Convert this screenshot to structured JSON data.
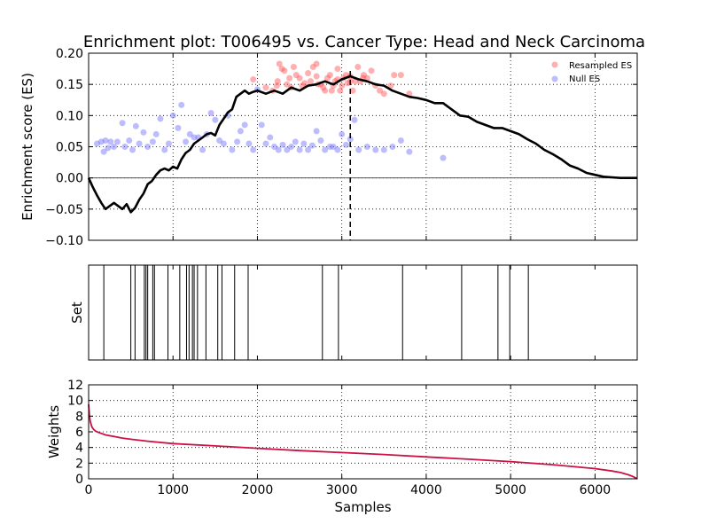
{
  "chart_data": [
    {
      "type": "line",
      "title": "Enrichment plot: T006495 vs. Cancer Type: Head and Neck Carcinoma",
      "xlabel": "",
      "ylabel": "Enrichment score (ES)",
      "xlim": [
        0,
        6500
      ],
      "ylim": [
        -0.1,
        0.2
      ],
      "yticks": [
        -0.1,
        -0.05,
        0.0,
        0.05,
        0.1,
        0.15,
        0.2
      ],
      "ytick_labels": [
        "−0.10",
        "−0.05",
        "0.00",
        "0.05",
        "0.10",
        "0.15",
        "0.20"
      ],
      "xticks": [
        1000,
        2000,
        3000,
        4000,
        5000,
        6000
      ],
      "grid": true,
      "legend_placement": "top-right",
      "legend": [
        "Resampled ES",
        "Null ES"
      ],
      "peak_x": 3100,
      "colors": {
        "es_line": "#000000",
        "resampled": "#ff4d4d",
        "null": "#6b6bff"
      },
      "series": [
        {
          "name": "",
          "x": [
            0,
            50,
            100,
            150,
            200,
            250,
            300,
            350,
            400,
            450,
            500,
            550,
            600,
            650,
            700,
            750,
            800,
            850,
            900,
            950,
            1000,
            1050,
            1100,
            1150,
            1200,
            1250,
            1300,
            1350,
            1400,
            1450,
            1500,
            1550,
            1600,
            1650,
            1700,
            1750,
            1800,
            1850,
            1900,
            1950,
            2000,
            2100,
            2200,
            2300,
            2400,
            2500,
            2600,
            2700,
            2800,
            2900,
            3000,
            3100,
            3200,
            3300,
            3400,
            3500,
            3600,
            3700,
            3800,
            3900,
            4000,
            4100,
            4200,
            4300,
            4400,
            4500,
            4600,
            4700,
            4800,
            4900,
            5000,
            5100,
            5200,
            5300,
            5400,
            5500,
            5600,
            5700,
            5800,
            5900,
            6000,
            6100,
            6200,
            6300,
            6400,
            6500
          ],
          "y": [
            0.0,
            -0.015,
            -0.028,
            -0.04,
            -0.05,
            -0.045,
            -0.04,
            -0.045,
            -0.05,
            -0.042,
            -0.055,
            -0.048,
            -0.035,
            -0.025,
            -0.01,
            -0.005,
            0.005,
            0.012,
            0.015,
            0.012,
            0.018,
            0.015,
            0.03,
            0.04,
            0.045,
            0.055,
            0.06,
            0.065,
            0.07,
            0.072,
            0.068,
            0.085,
            0.095,
            0.105,
            0.11,
            0.13,
            0.135,
            0.14,
            0.135,
            0.138,
            0.14,
            0.135,
            0.14,
            0.135,
            0.145,
            0.14,
            0.148,
            0.15,
            0.155,
            0.15,
            0.158,
            0.163,
            0.158,
            0.155,
            0.15,
            0.148,
            0.14,
            0.135,
            0.13,
            0.128,
            0.125,
            0.12,
            0.12,
            0.11,
            0.1,
            0.098,
            0.09,
            0.085,
            0.08,
            0.08,
            0.075,
            0.07,
            0.062,
            0.055,
            0.045,
            0.038,
            0.03,
            0.02,
            0.015,
            0.008,
            0.005,
            0.002,
            0.001,
            0.0,
            0.0,
            0.0
          ]
        }
      ],
      "resampled_es": {
        "x": [
          1950,
          2100,
          2180,
          2230,
          2260,
          2290,
          2320,
          2350,
          2380,
          2400,
          2430,
          2460,
          2500,
          2530,
          2560,
          2600,
          2630,
          2660,
          2700,
          2720,
          2750,
          2780,
          2800,
          2830,
          2860,
          2880,
          2900,
          2920,
          2950,
          2980,
          3000,
          3020,
          3050,
          3070,
          3100,
          3130,
          3160,
          3190,
          3220,
          3260,
          3300,
          3350,
          3400,
          3450,
          3500,
          3580,
          3620,
          3700,
          3800,
          2240,
          2700,
          2950,
          3100,
          3250
        ],
        "y": [
          0.158,
          0.145,
          0.14,
          0.148,
          0.183,
          0.175,
          0.172,
          0.15,
          0.16,
          0.145,
          0.178,
          0.165,
          0.16,
          0.148,
          0.152,
          0.168,
          0.155,
          0.178,
          0.163,
          0.15,
          0.15,
          0.145,
          0.14,
          0.16,
          0.165,
          0.14,
          0.148,
          0.155,
          0.158,
          0.14,
          0.148,
          0.16,
          0.165,
          0.152,
          0.163,
          0.14,
          0.155,
          0.178,
          0.155,
          0.165,
          0.16,
          0.172,
          0.148,
          0.14,
          0.135,
          0.148,
          0.165,
          0.165,
          0.135,
          0.155,
          0.183,
          0.175,
          0.155,
          0.16
        ]
      },
      "null_es": {
        "x": [
          100,
          150,
          180,
          200,
          230,
          260,
          300,
          340,
          400,
          430,
          480,
          520,
          560,
          600,
          650,
          700,
          760,
          800,
          850,
          900,
          950,
          1000,
          1060,
          1100,
          1150,
          1200,
          1250,
          1300,
          1350,
          1400,
          1450,
          1500,
          1550,
          1600,
          1650,
          1700,
          1760,
          1800,
          1850,
          1900,
          1950,
          2000,
          2050,
          2100,
          2150,
          2200,
          2250,
          2300,
          2350,
          2400,
          2450,
          2500,
          2550,
          2600,
          2650,
          2700,
          2750,
          2800,
          2860,
          2900,
          2950,
          3000,
          3050,
          3100,
          3150,
          3200,
          3300,
          3400,
          3500,
          3600,
          3700,
          3800,
          4200
        ],
        "y": [
          0.055,
          0.058,
          0.042,
          0.06,
          0.048,
          0.058,
          0.05,
          0.058,
          0.088,
          0.05,
          0.06,
          0.045,
          0.083,
          0.055,
          0.073,
          0.05,
          0.058,
          0.07,
          0.095,
          0.045,
          0.055,
          0.1,
          0.08,
          0.117,
          0.058,
          0.07,
          0.065,
          0.065,
          0.045,
          0.07,
          0.104,
          0.093,
          0.06,
          0.055,
          0.1,
          0.045,
          0.058,
          0.075,
          0.085,
          0.055,
          0.045,
          0.142,
          0.085,
          0.055,
          0.065,
          0.05,
          0.045,
          0.053,
          0.045,
          0.05,
          0.058,
          0.045,
          0.055,
          0.045,
          0.052,
          0.075,
          0.06,
          0.045,
          0.05,
          0.05,
          0.045,
          0.07,
          0.053,
          0.062,
          0.093,
          0.045,
          0.05,
          0.045,
          0.045,
          0.05,
          0.06,
          0.042,
          0.032
        ]
      }
    },
    {
      "type": "barcode",
      "title": "",
      "xlabel": "",
      "ylabel": "Set",
      "xlim": [
        0,
        6500
      ],
      "x_positions": [
        180,
        500,
        550,
        660,
        680,
        700,
        760,
        780,
        940,
        1080,
        1160,
        1190,
        1230,
        1250,
        1290,
        1390,
        1530,
        1580,
        1730,
        1890,
        2770,
        2960,
        3720,
        4420,
        4850,
        4990,
        5210
      ]
    },
    {
      "type": "line",
      "title": "",
      "xlabel": "Samples",
      "ylabel": "Weights",
      "xlim": [
        0,
        6500
      ],
      "ylim": [
        0,
        12
      ],
      "yticks": [
        0,
        2,
        4,
        6,
        8,
        10,
        12
      ],
      "xticks": [
        0,
        1000,
        2000,
        3000,
        4000,
        5000,
        6000
      ],
      "grid": true,
      "colors": {
        "weights_line": "#cc1144"
      },
      "series": [
        {
          "name": "",
          "x": [
            0,
            10,
            20,
            40,
            60,
            80,
            100,
            150,
            200,
            300,
            400,
            500,
            700,
            1000,
            1500,
            2000,
            2500,
            3000,
            3500,
            4000,
            4500,
            5000,
            5500,
            6000,
            6200,
            6300,
            6400,
            6450,
            6480,
            6500
          ],
          "y": [
            9.5,
            8.0,
            7.3,
            6.6,
            6.3,
            6.1,
            6.0,
            5.8,
            5.6,
            5.4,
            5.2,
            5.05,
            4.8,
            4.5,
            4.2,
            3.9,
            3.6,
            3.35,
            3.1,
            2.8,
            2.5,
            2.2,
            1.8,
            1.3,
            1.0,
            0.8,
            0.5,
            0.3,
            0.12,
            0.0
          ]
        }
      ]
    }
  ]
}
